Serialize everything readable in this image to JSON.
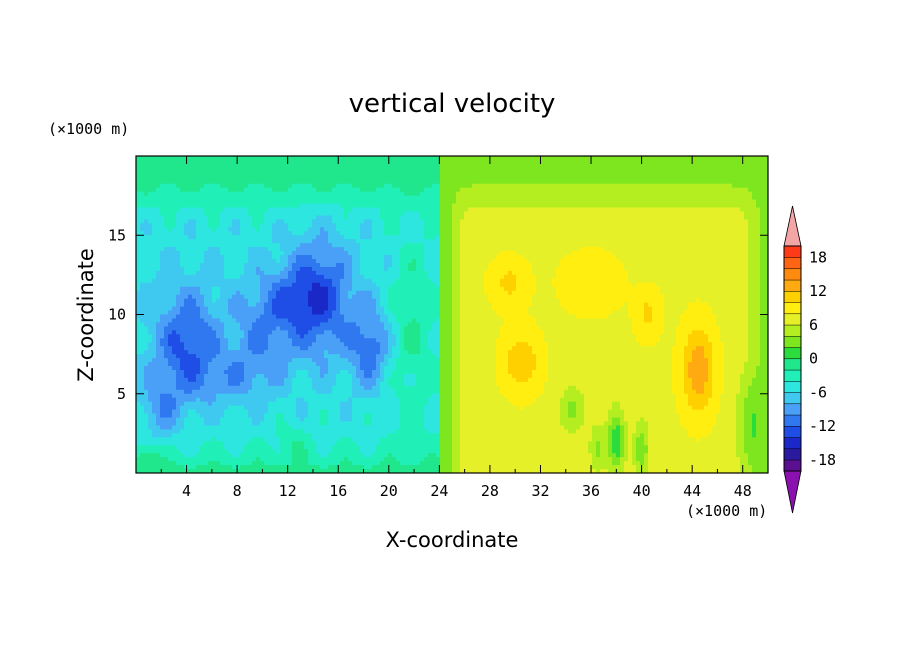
{
  "chart_data": {
    "type": "heatmap",
    "title": "vertical velocity",
    "xlabel": "X-coordinate",
    "ylabel": "Z-coordinate",
    "x_unit_label": "(×1000 m)",
    "y_unit_label": "(×1000 m)",
    "xlim": [
      0,
      50
    ],
    "ylim": [
      0,
      20
    ],
    "x_ticks": [
      4,
      8,
      12,
      16,
      20,
      24,
      28,
      32,
      36,
      40,
      44,
      48
    ],
    "x_tick_labels": [
      "4",
      "8",
      "12",
      "16",
      "20",
      "24",
      "28",
      "32",
      "36",
      "40",
      "44",
      "48"
    ],
    "y_ticks": [
      5,
      10,
      15
    ],
    "y_tick_labels": [
      "5",
      "10",
      "15"
    ],
    "colorbar": {
      "levels": [
        -20,
        -18,
        -16,
        -14,
        -12,
        -10,
        -8,
        -6,
        -4,
        -2,
        0,
        2,
        4,
        6,
        8,
        10,
        12,
        14,
        16,
        18,
        20
      ],
      "tick_values": [
        18,
        12,
        6,
        0,
        -6,
        -12,
        -18
      ],
      "tick_labels": [
        "18",
        "12",
        "6",
        "0",
        "-6",
        "-12",
        "-18"
      ],
      "colors": [
        "#5a1090",
        "#2a1aa0",
        "#1a28c8",
        "#1f4ee6",
        "#2f78f0",
        "#4aa0f6",
        "#3fc8f0",
        "#2ee6e0",
        "#20f0b8",
        "#20e68c",
        "#2adc3c",
        "#7ee61e",
        "#b4ee20",
        "#e6f028",
        "#ffee10",
        "#ffd000",
        "#ffaa10",
        "#ff8a10",
        "#ff6414",
        "#ff3a18"
      ],
      "under_color": "#8a10b0",
      "over_color": "#f4a6a6"
    },
    "features": [
      {
        "kind": "downdraft-region",
        "x_range": [
          0,
          24
        ],
        "z_range": [
          0,
          20
        ],
        "min_value": -14
      },
      {
        "kind": "updraft-region",
        "x_range": [
          24,
          50
        ],
        "z_range": [
          0,
          18
        ],
        "max_value": 16
      },
      {
        "kind": "updraft-core",
        "x": 44.5,
        "z": 6.5,
        "value": 14
      },
      {
        "kind": "updraft-core",
        "x": 30.5,
        "z": 7,
        "value": 12
      },
      {
        "kind": "updraft-core",
        "x": 29.5,
        "z": 12,
        "value": 10
      },
      {
        "kind": "downdraft-core",
        "x": 14.5,
        "z": 11,
        "value": -14
      },
      {
        "kind": "downdraft-core",
        "x": 4.5,
        "z": 9,
        "value": -12
      }
    ]
  }
}
